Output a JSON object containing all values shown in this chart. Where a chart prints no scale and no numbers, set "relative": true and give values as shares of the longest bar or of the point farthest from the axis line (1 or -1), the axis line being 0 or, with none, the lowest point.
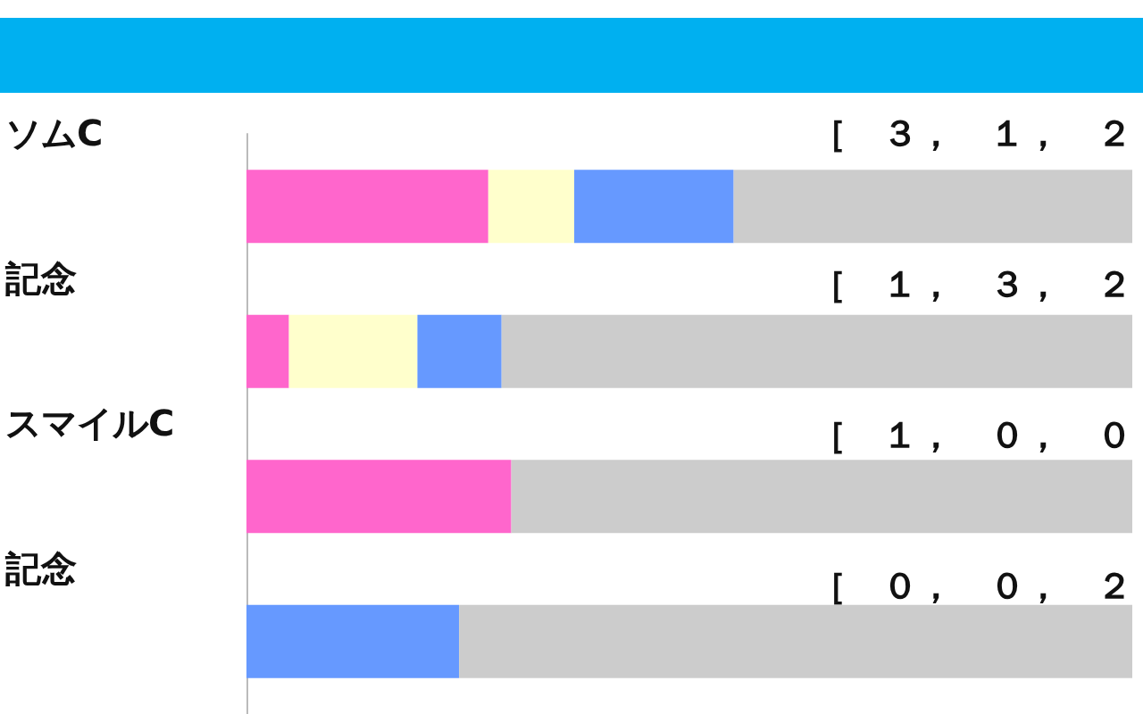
{
  "chart_data": {
    "type": "bar",
    "orientation": "horizontal",
    "stacked": true,
    "relative": true,
    "categories": [
      "ソムC",
      "記念",
      "スマイルC",
      "記念"
    ],
    "series": [
      {
        "color": "#ff66cc",
        "values": [
          0.273,
          0.048,
          0.299,
          0
        ]
      },
      {
        "color": "#ffffcc",
        "values": [
          0.097,
          0.145,
          0,
          0
        ]
      },
      {
        "color": "#6699ff",
        "values": [
          0.18,
          0.095,
          0,
          0.24
        ]
      },
      {
        "color": "#cccccc",
        "values": [
          0.45,
          0.712,
          0.701,
          0.76
        ]
      }
    ],
    "annotations": [
      "［　３，　１，　２",
      "［　１，　３，　２",
      "［　１，　０，　０",
      "［　０，　０，　２"
    ]
  }
}
